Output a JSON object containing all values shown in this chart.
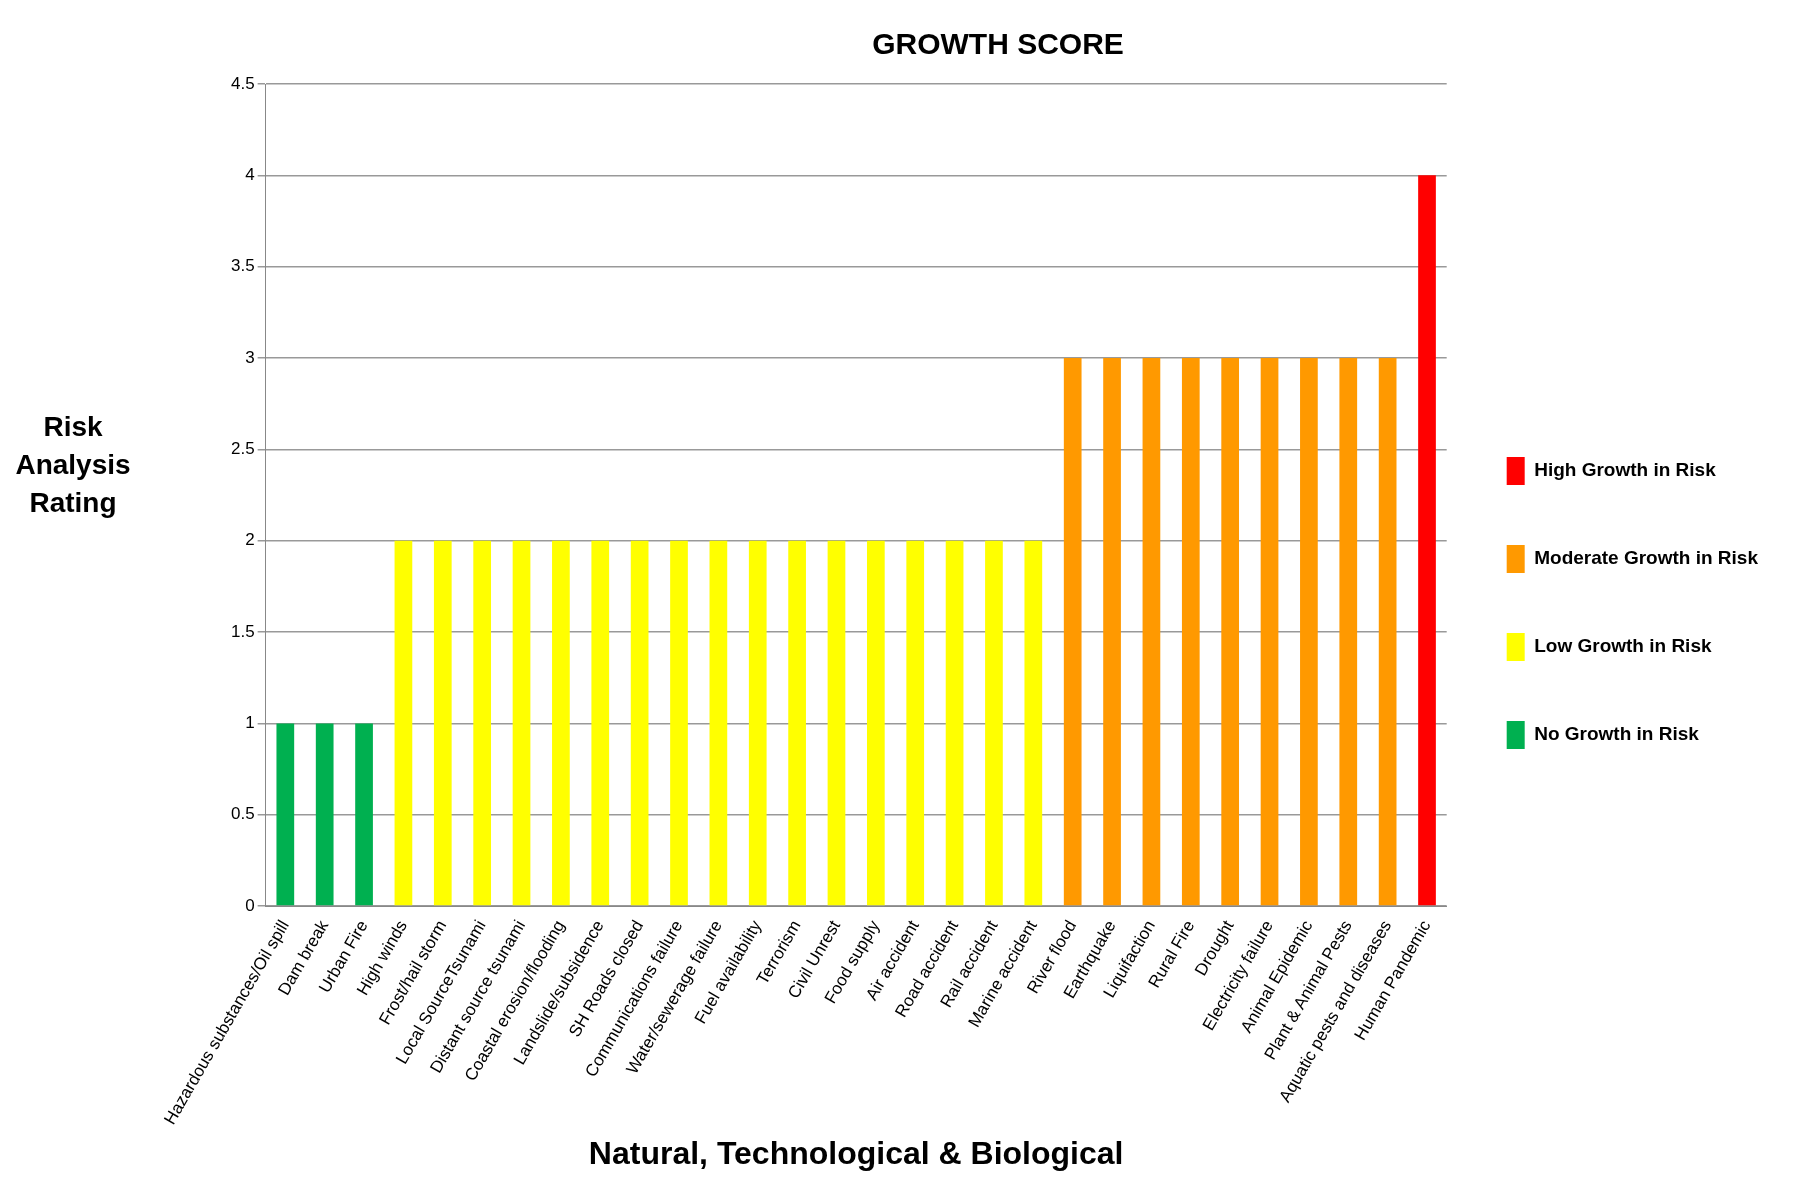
{
  "chart_data": {
    "type": "bar",
    "title": "GROWTH SCORE",
    "xlabel": "Natural, Technological & Biological",
    "ylabel": "Risk Analysis Rating",
    "categories": [
      "Hazardous substances/Oil spill",
      "Dam break",
      "Urban Fire",
      "High winds",
      "Frost/hail storm",
      "Local SourceTsunami",
      "Distant source tsunami",
      "Coastal erosion/flooding",
      "Landslide/subsidence",
      "SH Roads closed",
      "Communications failure",
      "Water/sewerage failure",
      "Fuel availability",
      "Terrorism",
      "Civil Unrest",
      "Food supply",
      "Air accident",
      "Road accident",
      "Rail accident",
      "Marine accident",
      "River flood",
      "Earthquake",
      "Liquifaction",
      "Rural Fire",
      "Drought",
      "Electricity failure",
      "Animal Epidemic",
      "Plant & Animal Pests",
      "Aquatic pests and diseases",
      "Human Pandemic"
    ],
    "series": [
      {
        "name": "High Growth in Risk",
        "color": "#ff0000",
        "values": [
          null,
          null,
          null,
          null,
          null,
          null,
          null,
          null,
          null,
          null,
          null,
          null,
          null,
          null,
          null,
          null,
          null,
          null,
          null,
          null,
          null,
          null,
          null,
          null,
          null,
          null,
          null,
          null,
          null,
          4
        ]
      },
      {
        "name": "Moderate Growth in Risk",
        "color": "#ff9900",
        "values": [
          null,
          null,
          null,
          null,
          null,
          null,
          null,
          null,
          null,
          null,
          null,
          null,
          null,
          null,
          null,
          null,
          null,
          null,
          null,
          null,
          3,
          3,
          3,
          3,
          3,
          3,
          3,
          3,
          3,
          null
        ]
      },
      {
        "name": "Low Growth in Risk",
        "color": "#ffff00",
        "values": [
          null,
          null,
          null,
          2,
          2,
          2,
          2,
          2,
          2,
          2,
          2,
          2,
          2,
          2,
          2,
          2,
          2,
          2,
          2,
          2,
          null,
          null,
          null,
          null,
          null,
          null,
          null,
          null,
          null,
          null
        ]
      },
      {
        "name": "No Growth in Risk",
        "color": "#00b050",
        "values": [
          1,
          1,
          1,
          null,
          null,
          null,
          null,
          null,
          null,
          null,
          null,
          null,
          null,
          null,
          null,
          null,
          null,
          null,
          null,
          null,
          null,
          null,
          null,
          null,
          null,
          null,
          null,
          null,
          null,
          null
        ]
      }
    ],
    "ylim": [
      0,
      4.5
    ],
    "yticks": [
      0,
      0.5,
      1,
      1.5,
      2,
      2.5,
      3,
      3.5,
      4,
      4.5
    ],
    "grid": "y",
    "legend": "right"
  }
}
